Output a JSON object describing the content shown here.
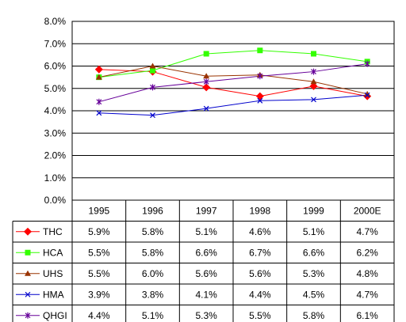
{
  "chart_data": {
    "type": "line",
    "title": "",
    "xlabel": "",
    "ylabel": "",
    "categories": [
      "1995",
      "1996",
      "1997",
      "1998",
      "1999",
      "2000E"
    ],
    "ylim": [
      0,
      8
    ],
    "y_tick_labels": [
      "0.0%",
      "1.0%",
      "2.0%",
      "3.0%",
      "4.0%",
      "5.0%",
      "6.0%",
      "7.0%",
      "8.0%"
    ],
    "grid": true,
    "legend_placement": "data-table-left",
    "series": [
      {
        "name": "THC",
        "color": "#FF0000",
        "marker": "diamond",
        "values": [
          5.85,
          5.75,
          5.05,
          4.65,
          5.1,
          4.65
        ],
        "labels": [
          "5.9%",
          "5.8%",
          "5.1%",
          "4.6%",
          "5.1%",
          "4.7%"
        ]
      },
      {
        "name": "HCA",
        "color": "#33FF00",
        "marker": "square",
        "values": [
          5.5,
          5.8,
          6.55,
          6.7,
          6.55,
          6.2
        ],
        "labels": [
          "5.5%",
          "5.8%",
          "6.6%",
          "6.7%",
          "6.6%",
          "6.2%"
        ]
      },
      {
        "name": "UHS",
        "color": "#993300",
        "marker": "triangle",
        "values": [
          5.5,
          6.0,
          5.55,
          5.6,
          5.3,
          4.75
        ],
        "labels": [
          "5.5%",
          "6.0%",
          "5.6%",
          "5.6%",
          "5.3%",
          "4.8%"
        ]
      },
      {
        "name": "HMA",
        "color": "#0000CC",
        "marker": "x",
        "values": [
          3.9,
          3.8,
          4.1,
          4.45,
          4.5,
          4.7
        ],
        "labels": [
          "3.9%",
          "3.8%",
          "4.1%",
          "4.4%",
          "4.5%",
          "4.7%"
        ]
      },
      {
        "name": "QHGI",
        "color": "#660099",
        "marker": "star",
        "values": [
          4.4,
          5.05,
          5.3,
          5.55,
          5.75,
          6.1
        ],
        "labels": [
          "4.4%",
          "5.1%",
          "5.3%",
          "5.5%",
          "5.8%",
          "6.1%"
        ]
      }
    ]
  }
}
